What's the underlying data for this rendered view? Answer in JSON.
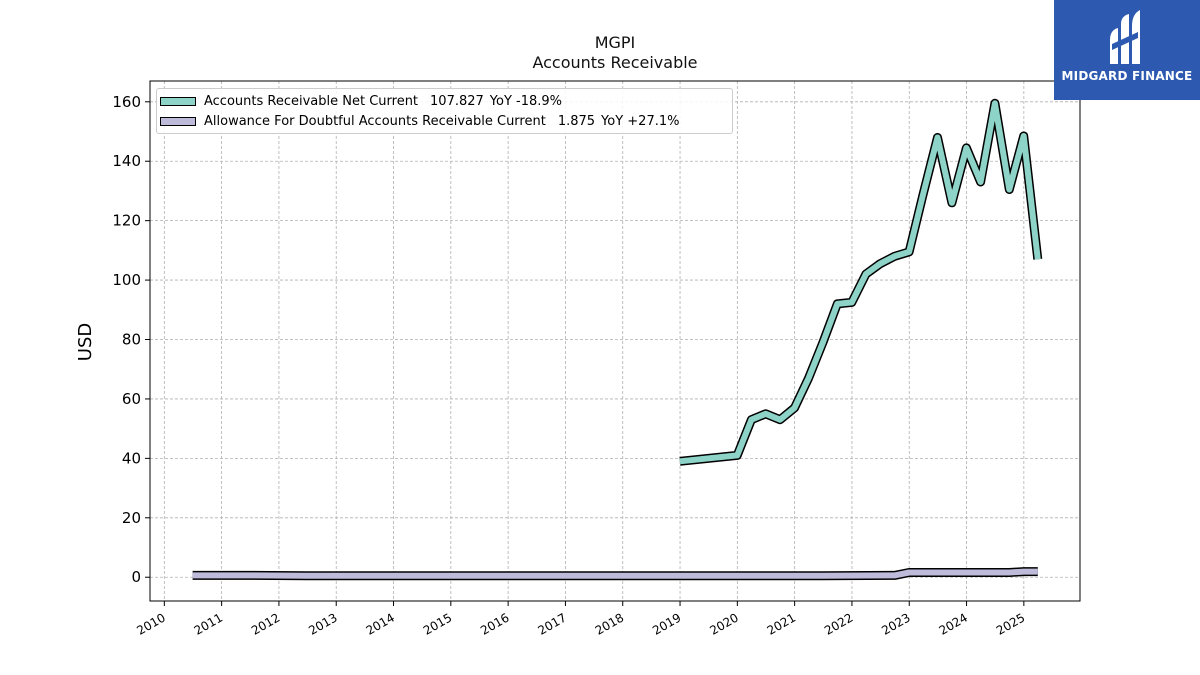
{
  "header": {
    "ticker": "MGPI",
    "subtitle": "Accounts Receivable"
  },
  "brand": {
    "name": "MIDGARD FINANCE",
    "color": "#2d59b0"
  },
  "chart_data": {
    "type": "line",
    "title": "MGPI",
    "subtitle": "Accounts Receivable",
    "xlabel": "",
    "ylabel": "USD",
    "xlim": [
      2009.75,
      2025.98
    ],
    "ylim": [
      -8,
      167
    ],
    "x_ticks": [
      "2010",
      "2011",
      "2012",
      "2013",
      "2014",
      "2015",
      "2016",
      "2017",
      "2018",
      "2019",
      "2020",
      "2021",
      "2022",
      "2023",
      "2024",
      "2025"
    ],
    "y_ticks": [
      0,
      20,
      40,
      60,
      80,
      100,
      120,
      140,
      160
    ],
    "grid": true,
    "legend_position": "top-left",
    "series": [
      {
        "name": "Accounts Receivable Net Current",
        "latest_value": "107.827",
        "yoy": "YoY -18.9%",
        "color": "#8dd3c7",
        "points": [
          [
            "2018-12-31",
            39.0
          ],
          [
            "2019-12-31",
            41.0
          ],
          [
            "2020-03-31",
            53.0
          ],
          [
            "2020-06-30",
            55.0
          ],
          [
            "2020-09-30",
            53.0
          ],
          [
            "2020-12-31",
            57.0
          ],
          [
            "2021-03-31",
            67.0
          ],
          [
            "2021-06-30",
            79.0
          ],
          [
            "2021-09-30",
            92.0
          ],
          [
            "2021-12-31",
            92.5
          ],
          [
            "2022-03-31",
            102.0
          ],
          [
            "2022-06-30",
            105.5
          ],
          [
            "2022-09-30",
            108.0
          ],
          [
            "2022-12-31",
            109.5
          ],
          [
            "2023-03-31",
            129.0
          ],
          [
            "2023-06-30",
            148.0
          ],
          [
            "2023-09-30",
            126.0
          ],
          [
            "2023-12-31",
            144.5
          ],
          [
            "2024-03-31",
            133.0
          ],
          [
            "2024-06-30",
            159.5
          ],
          [
            "2024-09-30",
            130.5
          ],
          [
            "2024-12-31",
            148.5
          ],
          [
            "2025-03-31",
            107.0
          ]
        ]
      },
      {
        "name": "Allowance For Doubtful Accounts Receivable Current",
        "latest_value": "1.875",
        "yoy": "YoY +27.1%",
        "color": "#bebada",
        "points": [
          [
            "2010-06-30",
            0.6
          ],
          [
            "2011-06-30",
            0.6
          ],
          [
            "2012-06-30",
            0.5
          ],
          [
            "2013-06-30",
            0.5
          ],
          [
            "2014-06-30",
            0.5
          ],
          [
            "2015-06-30",
            0.5
          ],
          [
            "2016-06-30",
            0.5
          ],
          [
            "2017-06-30",
            0.5
          ],
          [
            "2018-06-30",
            0.5
          ],
          [
            "2019-06-30",
            0.5
          ],
          [
            "2020-06-30",
            0.5
          ],
          [
            "2021-06-30",
            0.5
          ],
          [
            "2022-09-30",
            0.6
          ],
          [
            "2022-12-31",
            1.6
          ],
          [
            "2023-12-31",
            1.6
          ],
          [
            "2024-09-30",
            1.6
          ],
          [
            "2024-12-31",
            1.9
          ],
          [
            "2025-03-31",
            1.9
          ]
        ]
      }
    ]
  }
}
